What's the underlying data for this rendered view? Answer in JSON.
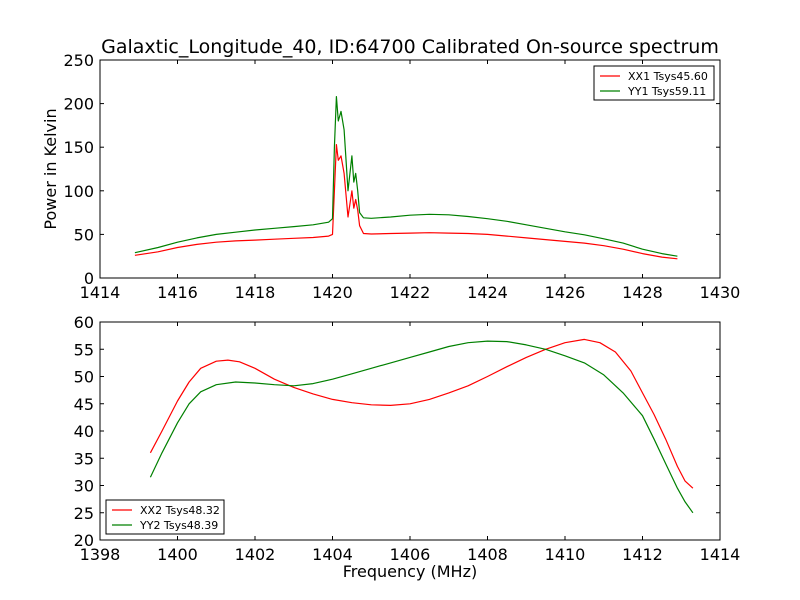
{
  "title": "Galaxtic_Longitude_40, ID:64700 Calibrated On-source spectrum",
  "colors": {
    "xx": "#ff0000",
    "yy": "#008000",
    "axes": "#000000",
    "background": "#ffffff"
  },
  "chart_data": [
    {
      "type": "line",
      "panel": "top",
      "title": "Galaxtic_Longitude_40, ID:64700 Calibrated On-source spectrum",
      "xlabel": "",
      "ylabel": "Power in Kelvin",
      "xlim": [
        1414,
        1430
      ],
      "ylim": [
        0,
        250
      ],
      "xticks": [
        "1414",
        "1416",
        "1418",
        "1420",
        "1422",
        "1424",
        "1426",
        "1428",
        "1430"
      ],
      "yticks": [
        "0",
        "50",
        "100",
        "150",
        "200",
        "250"
      ],
      "grid": false,
      "legend": "top-right",
      "series": [
        {
          "name": "XX1 Tsys45.60",
          "color": "#ff0000",
          "points": [
            [
              1414.9,
              26
            ],
            [
              1415.5,
              30
            ],
            [
              1416.0,
              35
            ],
            [
              1416.5,
              38.5
            ],
            [
              1417.0,
              41
            ],
            [
              1417.5,
              42.5
            ],
            [
              1418.0,
              43.5
            ],
            [
              1418.5,
              44.5
            ],
            [
              1419.0,
              45.5
            ],
            [
              1419.5,
              46.5
            ],
            [
              1419.9,
              48
            ],
            [
              1420.0,
              50
            ],
            [
              1420.05,
              100
            ],
            [
              1420.1,
              153
            ],
            [
              1420.15,
              135
            ],
            [
              1420.22,
              140
            ],
            [
              1420.3,
              120
            ],
            [
              1420.4,
              70
            ],
            [
              1420.5,
              100
            ],
            [
              1420.55,
              80
            ],
            [
              1420.6,
              90
            ],
            [
              1420.65,
              78
            ],
            [
              1420.7,
              60
            ],
            [
              1420.8,
              51
            ],
            [
              1421.0,
              50.5
            ],
            [
              1421.5,
              51
            ],
            [
              1422.0,
              51.5
            ],
            [
              1422.5,
              52
            ],
            [
              1423.0,
              51.5
            ],
            [
              1423.5,
              51
            ],
            [
              1424.0,
              50
            ],
            [
              1424.5,
              48
            ],
            [
              1425.0,
              46
            ],
            [
              1425.5,
              44
            ],
            [
              1426.0,
              42
            ],
            [
              1426.5,
              40
            ],
            [
              1427.0,
              37
            ],
            [
              1427.5,
              33
            ],
            [
              1428.0,
              28
            ],
            [
              1428.5,
              24
            ],
            [
              1428.9,
              22
            ]
          ]
        },
        {
          "name": "YY1 Tsys59.11",
          "color": "#008000",
          "points": [
            [
              1414.9,
              29
            ],
            [
              1415.5,
              35
            ],
            [
              1416.0,
              41
            ],
            [
              1416.5,
              46
            ],
            [
              1417.0,
              50
            ],
            [
              1417.5,
              52.5
            ],
            [
              1418.0,
              55
            ],
            [
              1418.5,
              57
            ],
            [
              1419.0,
              59
            ],
            [
              1419.5,
              61
            ],
            [
              1419.9,
              64
            ],
            [
              1420.0,
              68
            ],
            [
              1420.05,
              150
            ],
            [
              1420.1,
              208
            ],
            [
              1420.15,
              180
            ],
            [
              1420.22,
              191
            ],
            [
              1420.3,
              170
            ],
            [
              1420.4,
              100
            ],
            [
              1420.5,
              140
            ],
            [
              1420.55,
              110
            ],
            [
              1420.6,
              120
            ],
            [
              1420.65,
              100
            ],
            [
              1420.7,
              75
            ],
            [
              1420.8,
              69
            ],
            [
              1421.0,
              68.5
            ],
            [
              1421.5,
              70
            ],
            [
              1422.0,
              72
            ],
            [
              1422.5,
              73
            ],
            [
              1423.0,
              72.5
            ],
            [
              1423.5,
              70.5
            ],
            [
              1424.0,
              68
            ],
            [
              1424.5,
              65
            ],
            [
              1425.0,
              61
            ],
            [
              1425.5,
              57
            ],
            [
              1426.0,
              53
            ],
            [
              1426.5,
              49.5
            ],
            [
              1427.0,
              45
            ],
            [
              1427.5,
              40
            ],
            [
              1428.0,
              33
            ],
            [
              1428.5,
              28
            ],
            [
              1428.9,
              25
            ]
          ]
        }
      ]
    },
    {
      "type": "line",
      "panel": "bottom",
      "title": "",
      "xlabel": "Frequency (MHz)",
      "ylabel": "",
      "xlim": [
        1398,
        1414
      ],
      "ylim": [
        20,
        60
      ],
      "xticks": [
        "1398",
        "1400",
        "1402",
        "1404",
        "1406",
        "1408",
        "1410",
        "1412",
        "1414"
      ],
      "yticks": [
        "20",
        "25",
        "30",
        "35",
        "40",
        "45",
        "50",
        "55",
        "60"
      ],
      "grid": false,
      "legend": "bottom-left",
      "series": [
        {
          "name": "XX2 Tsys48.32",
          "color": "#ff0000",
          "points": [
            [
              1399.3,
              36
            ],
            [
              1399.6,
              40
            ],
            [
              1400.0,
              45.5
            ],
            [
              1400.3,
              49
            ],
            [
              1400.6,
              51.5
            ],
            [
              1401.0,
              52.8
            ],
            [
              1401.3,
              53
            ],
            [
              1401.6,
              52.7
            ],
            [
              1402.0,
              51.5
            ],
            [
              1402.5,
              49.5
            ],
            [
              1403.0,
              48
            ],
            [
              1403.5,
              46.8
            ],
            [
              1404.0,
              45.8
            ],
            [
              1404.5,
              45.2
            ],
            [
              1405.0,
              44.8
            ],
            [
              1405.5,
              44.7
            ],
            [
              1406.0,
              45
            ],
            [
              1406.5,
              45.8
            ],
            [
              1407.0,
              47
            ],
            [
              1407.5,
              48.3
            ],
            [
              1408.0,
              50
            ],
            [
              1408.5,
              51.8
            ],
            [
              1409.0,
              53.5
            ],
            [
              1409.5,
              55
            ],
            [
              1410.0,
              56.2
            ],
            [
              1410.5,
              56.8
            ],
            [
              1410.9,
              56.2
            ],
            [
              1411.3,
              54.5
            ],
            [
              1411.7,
              51
            ],
            [
              1412.0,
              47
            ],
            [
              1412.3,
              43
            ],
            [
              1412.6,
              38.5
            ],
            [
              1412.9,
              33.5
            ],
            [
              1413.1,
              30.8
            ],
            [
              1413.3,
              29.5
            ]
          ]
        },
        {
          "name": "YY2 Tsys48.39",
          "color": "#008000",
          "points": [
            [
              1399.3,
              31.5
            ],
            [
              1399.6,
              36
            ],
            [
              1400.0,
              41.5
            ],
            [
              1400.3,
              45
            ],
            [
              1400.6,
              47.2
            ],
            [
              1401.0,
              48.5
            ],
            [
              1401.5,
              49
            ],
            [
              1402.0,
              48.8
            ],
            [
              1402.5,
              48.5
            ],
            [
              1403.0,
              48.3
            ],
            [
              1403.5,
              48.7
            ],
            [
              1404.0,
              49.5
            ],
            [
              1404.5,
              50.5
            ],
            [
              1405.0,
              51.5
            ],
            [
              1405.5,
              52.5
            ],
            [
              1406.0,
              53.5
            ],
            [
              1406.5,
              54.5
            ],
            [
              1407.0,
              55.5
            ],
            [
              1407.5,
              56.2
            ],
            [
              1408.0,
              56.5
            ],
            [
              1408.5,
              56.4
            ],
            [
              1409.0,
              55.8
            ],
            [
              1409.5,
              55
            ],
            [
              1410.0,
              53.8
            ],
            [
              1410.5,
              52.5
            ],
            [
              1411.0,
              50.3
            ],
            [
              1411.5,
              47
            ],
            [
              1412.0,
              42.8
            ],
            [
              1412.3,
              38.5
            ],
            [
              1412.6,
              34
            ],
            [
              1412.9,
              29.5
            ],
            [
              1413.1,
              27
            ],
            [
              1413.3,
              25
            ]
          ]
        }
      ]
    }
  ]
}
